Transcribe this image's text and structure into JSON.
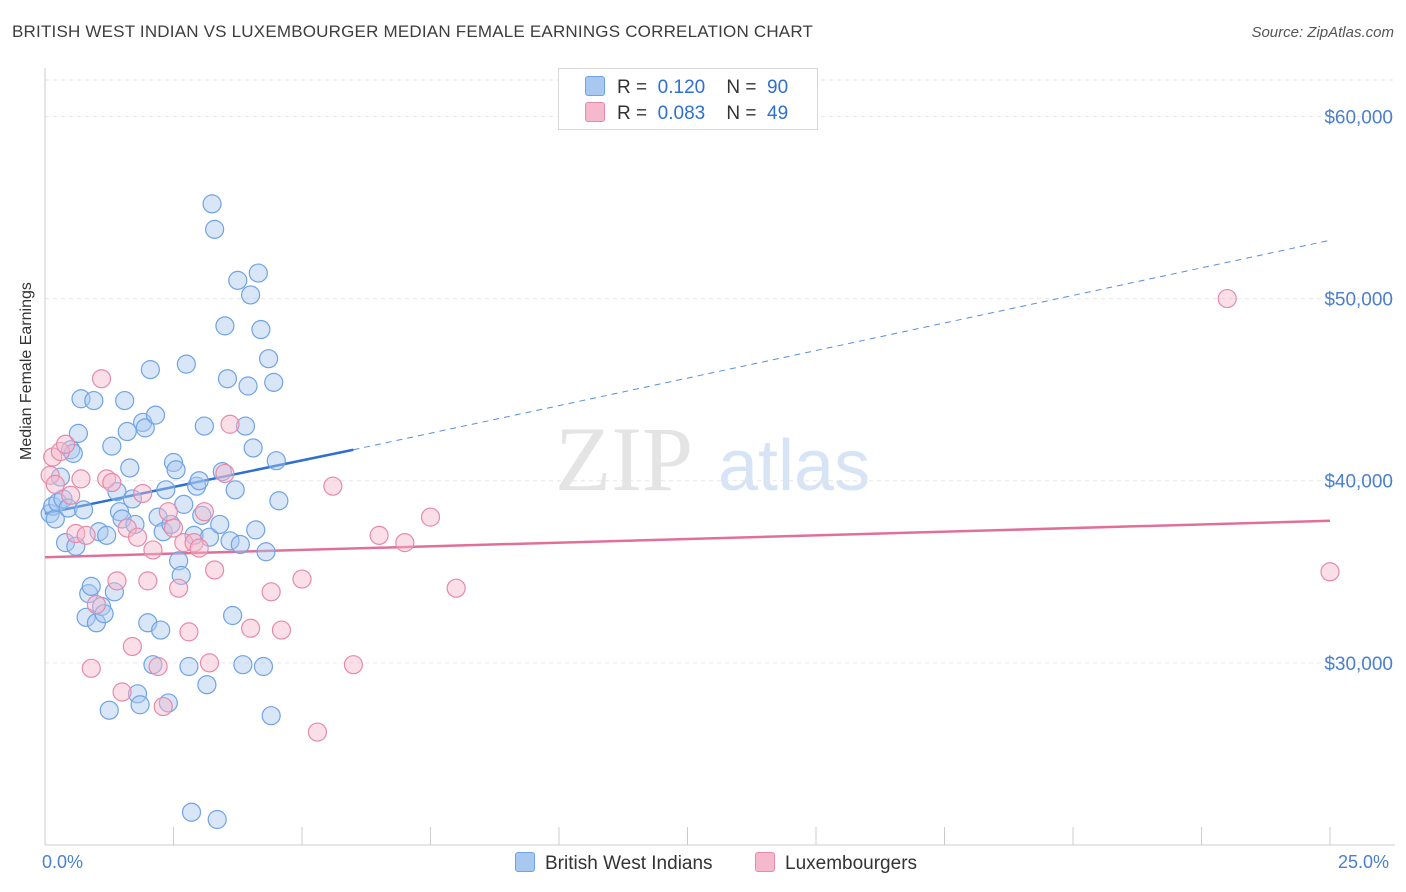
{
  "title": "BRITISH WEST INDIAN VS LUXEMBOURGER MEDIAN FEMALE EARNINGS CORRELATION CHART",
  "source": "Source: ZipAtlas.com",
  "watermark": {
    "zip": "ZIP",
    "atlas": "atlas"
  },
  "legend": {
    "rows": [
      {
        "r_label": "R =",
        "r_value": "0.120",
        "n_label": "N =",
        "n_value": "90",
        "color": "#a8c8f0"
      },
      {
        "r_label": "R =",
        "r_value": "0.083",
        "n_label": "N =",
        "n_value": "49",
        "color": "#f5b8cc"
      }
    ]
  },
  "bottom_legend": [
    {
      "label": "British West Indians",
      "color": "#a8c8f0"
    },
    {
      "label": "Luxembourgers",
      "color": "#f5b8cc"
    }
  ],
  "chart_data": {
    "type": "scatter",
    "title": "BRITISH WEST INDIAN VS LUXEMBOURGER MEDIAN FEMALE EARNINGS CORRELATION CHART",
    "xlabel": "",
    "ylabel": "Median Female Earnings",
    "xlim": [
      0,
      25
    ],
    "ylim": [
      20000,
      62000
    ],
    "x_tick_labels": [
      "0.0%",
      "25.0%"
    ],
    "y_ticks": [
      30000,
      40000,
      50000,
      60000
    ],
    "y_tick_labels": [
      "$30,000",
      "$40,000",
      "$50,000",
      "$60,000"
    ],
    "grid": true,
    "series": [
      {
        "name": "British West Indians",
        "color": "#6fa3e6",
        "fill": "#a8c8f0",
        "trend": {
          "x0": 0,
          "y0": 38200,
          "x1": 6,
          "y1": 41700,
          "dashed_to_x": 25,
          "dashed_to_y": 53200
        },
        "points": [
          [
            0.1,
            38200
          ],
          [
            0.15,
            38600
          ],
          [
            0.2,
            37900
          ],
          [
            0.25,
            38800
          ],
          [
            0.3,
            40200
          ],
          [
            0.35,
            39000
          ],
          [
            0.4,
            36600
          ],
          [
            0.45,
            38500
          ],
          [
            0.5,
            41700
          ],
          [
            0.55,
            41500
          ],
          [
            0.6,
            36400
          ],
          [
            0.65,
            42600
          ],
          [
            0.7,
            44500
          ],
          [
            0.75,
            38400
          ],
          [
            0.8,
            32500
          ],
          [
            0.85,
            33800
          ],
          [
            0.9,
            34200
          ],
          [
            0.95,
            44400
          ],
          [
            1.0,
            32200
          ],
          [
            1.05,
            37200
          ],
          [
            1.1,
            33100
          ],
          [
            1.15,
            32700
          ],
          [
            1.2,
            37000
          ],
          [
            1.25,
            27400
          ],
          [
            1.3,
            41900
          ],
          [
            1.35,
            33900
          ],
          [
            1.4,
            39400
          ],
          [
            1.45,
            38300
          ],
          [
            1.5,
            37900
          ],
          [
            1.55,
            44400
          ],
          [
            1.6,
            42700
          ],
          [
            1.65,
            40700
          ],
          [
            1.7,
            39000
          ],
          [
            1.75,
            37600
          ],
          [
            1.8,
            28300
          ],
          [
            1.85,
            27700
          ],
          [
            1.9,
            43200
          ],
          [
            1.95,
            42900
          ],
          [
            2.0,
            32200
          ],
          [
            2.05,
            46100
          ],
          [
            2.1,
            29900
          ],
          [
            2.15,
            43600
          ],
          [
            2.2,
            38000
          ],
          [
            2.25,
            31800
          ],
          [
            2.3,
            37200
          ],
          [
            2.35,
            39500
          ],
          [
            2.4,
            27800
          ],
          [
            2.45,
            37600
          ],
          [
            2.5,
            41000
          ],
          [
            2.55,
            40600
          ],
          [
            2.6,
            35600
          ],
          [
            2.65,
            34800
          ],
          [
            2.7,
            38700
          ],
          [
            2.75,
            46400
          ],
          [
            2.8,
            29800
          ],
          [
            2.85,
            21800
          ],
          [
            2.9,
            37000
          ],
          [
            2.95,
            39700
          ],
          [
            3.0,
            40000
          ],
          [
            3.05,
            38100
          ],
          [
            3.1,
            43000
          ],
          [
            3.15,
            28800
          ],
          [
            3.2,
            36900
          ],
          [
            3.25,
            55200
          ],
          [
            3.3,
            53800
          ],
          [
            3.35,
            21400
          ],
          [
            3.4,
            37600
          ],
          [
            3.45,
            40500
          ],
          [
            3.5,
            48500
          ],
          [
            3.55,
            45600
          ],
          [
            3.6,
            36700
          ],
          [
            3.65,
            32600
          ],
          [
            3.7,
            39500
          ],
          [
            3.75,
            51000
          ],
          [
            3.8,
            36500
          ],
          [
            3.85,
            29900
          ],
          [
            3.9,
            43000
          ],
          [
            3.95,
            45200
          ],
          [
            4.0,
            50200
          ],
          [
            4.05,
            41800
          ],
          [
            4.1,
            37300
          ],
          [
            4.15,
            51400
          ],
          [
            4.2,
            48300
          ],
          [
            4.25,
            29800
          ],
          [
            4.3,
            36100
          ],
          [
            4.35,
            46700
          ],
          [
            4.4,
            27100
          ],
          [
            4.45,
            45400
          ],
          [
            4.5,
            41100
          ],
          [
            4.55,
            38900
          ]
        ]
      },
      {
        "name": "Luxembourgers",
        "color": "#e78aa8",
        "fill": "#f5b8cc",
        "trend": {
          "x0": 0,
          "y0": 35800,
          "x1": 25,
          "y1": 37800
        },
        "points": [
          [
            0.1,
            40300
          ],
          [
            0.15,
            41300
          ],
          [
            0.2,
            39800
          ],
          [
            0.3,
            41600
          ],
          [
            0.4,
            42000
          ],
          [
            0.5,
            39200
          ],
          [
            0.6,
            37100
          ],
          [
            0.7,
            40100
          ],
          [
            0.8,
            37000
          ],
          [
            0.9,
            29700
          ],
          [
            1.0,
            33200
          ],
          [
            1.1,
            45600
          ],
          [
            1.2,
            40100
          ],
          [
            1.3,
            39900
          ],
          [
            1.4,
            34500
          ],
          [
            1.5,
            28400
          ],
          [
            1.6,
            37400
          ],
          [
            1.7,
            30900
          ],
          [
            1.8,
            36900
          ],
          [
            1.9,
            39300
          ],
          [
            2.0,
            34500
          ],
          [
            2.1,
            36200
          ],
          [
            2.2,
            29800
          ],
          [
            2.3,
            27600
          ],
          [
            2.4,
            38300
          ],
          [
            2.5,
            37400
          ],
          [
            2.6,
            34100
          ],
          [
            2.7,
            36600
          ],
          [
            2.8,
            31700
          ],
          [
            2.9,
            36600
          ],
          [
            3.0,
            36300
          ],
          [
            3.1,
            38300
          ],
          [
            3.2,
            30000
          ],
          [
            3.3,
            35100
          ],
          [
            3.5,
            40400
          ],
          [
            3.6,
            43100
          ],
          [
            4.0,
            31900
          ],
          [
            4.4,
            33900
          ],
          [
            4.6,
            31800
          ],
          [
            5.0,
            34600
          ],
          [
            5.3,
            26200
          ],
          [
            5.6,
            39700
          ],
          [
            6.0,
            29900
          ],
          [
            6.5,
            37000
          ],
          [
            7.0,
            36600
          ],
          [
            7.5,
            38000
          ],
          [
            8.0,
            34100
          ],
          [
            23.0,
            50000
          ],
          [
            25.0,
            35000
          ]
        ]
      }
    ]
  }
}
